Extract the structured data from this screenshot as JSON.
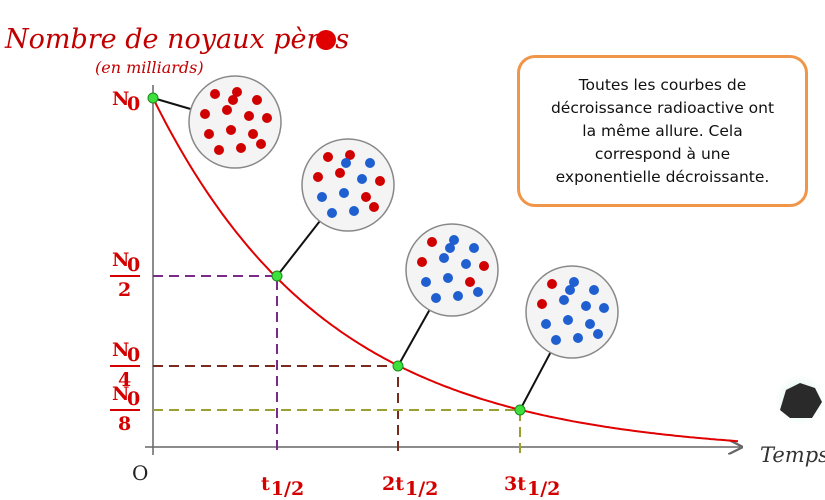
{
  "title": "Nombre de noyaux pères",
  "subtitle": "(en milliards)",
  "y_labels": [
    {
      "symbol": "N",
      "sub": "0"
    },
    {
      "symbol": "N",
      "sub": "0",
      "denominator": "2"
    },
    {
      "symbol": "N",
      "sub": "0",
      "denominator": "4"
    },
    {
      "symbol": "N",
      "sub": "0",
      "denominator": "8"
    }
  ],
  "origin": "O",
  "x_labels": [
    {
      "symbol": "t",
      "sub": "1/2"
    },
    {
      "symbol": "2t",
      "sub": "1/2"
    },
    {
      "symbol": "3t",
      "sub": "1/2"
    }
  ],
  "x_axis_label": "Temps",
  "note": "Toutes les courbes de décroissance radioactive ont la même allure. Cela correspond à une exponentielle décroissante."
}
